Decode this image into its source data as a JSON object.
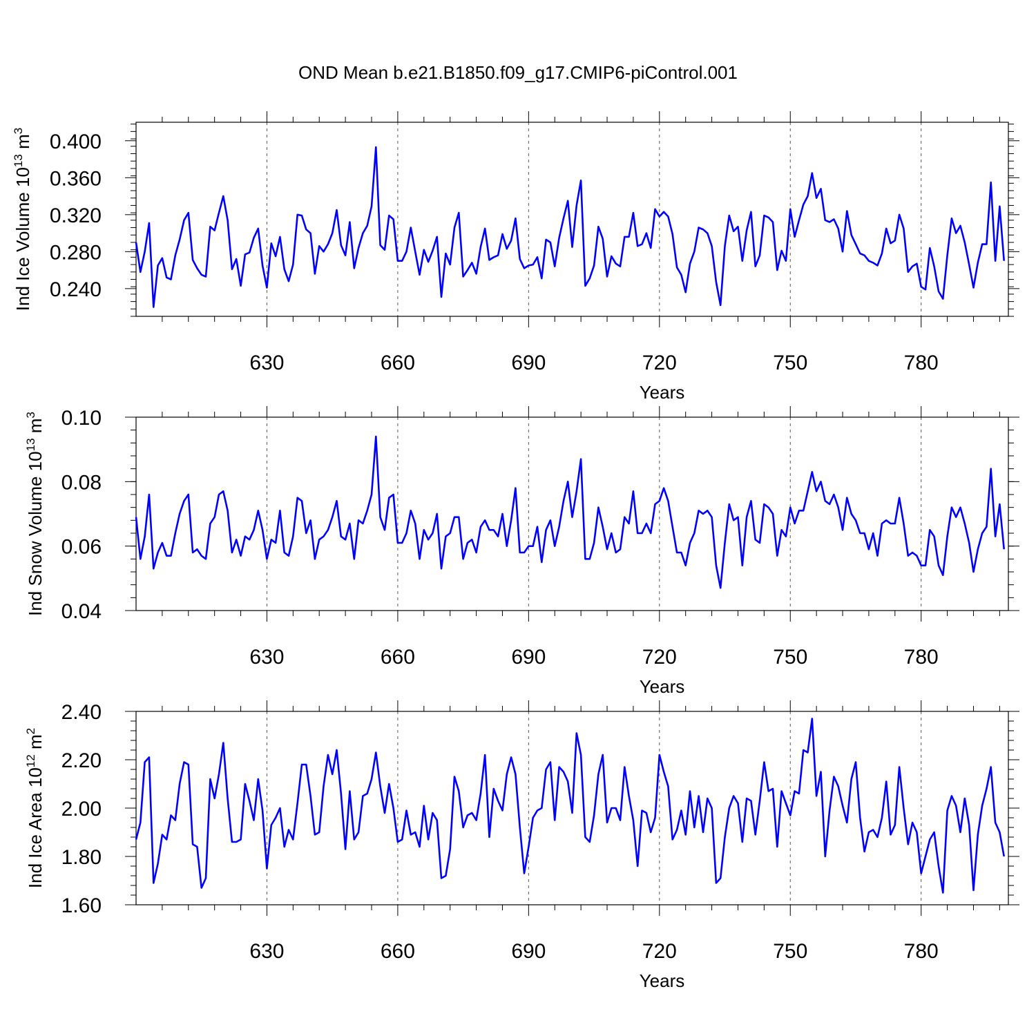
{
  "title": "OND Mean b.e21.B1850.f09_g17.CMIP6-piControl.001",
  "colors": {
    "series": "#0000ff",
    "axis": "#000000",
    "grid": "#555555"
  },
  "chart_data": [
    {
      "type": "line",
      "name": "ice-volume",
      "ylabel_main": "Ind Ice Volume 10",
      "ylabel_sup": "13",
      "ylabel_unit": " m",
      "ylabel_unit_sup": "3",
      "xlabel": "Years",
      "xlim": [
        600,
        800
      ],
      "ylim": [
        0.21,
        0.42
      ],
      "x_ticks": [
        630,
        660,
        690,
        720,
        750,
        780
      ],
      "x_tick_labels": [
        "630",
        "660",
        "690",
        "720",
        "750",
        "780"
      ],
      "y_ticks": [
        0.24,
        0.28,
        0.32,
        0.36,
        0.4
      ],
      "y_tick_labels": [
        "0.240",
        "0.280",
        "0.320",
        "0.360",
        "0.400"
      ],
      "x_start": 600,
      "values": [
        0.29,
        0.258,
        0.28,
        0.311,
        0.22,
        0.265,
        0.273,
        0.252,
        0.25,
        0.276,
        0.293,
        0.314,
        0.322,
        0.271,
        0.262,
        0.255,
        0.253,
        0.307,
        0.303,
        0.322,
        0.34,
        0.314,
        0.261,
        0.272,
        0.243,
        0.277,
        0.279,
        0.295,
        0.305,
        0.265,
        0.241,
        0.289,
        0.275,
        0.296,
        0.261,
        0.248,
        0.266,
        0.32,
        0.319,
        0.304,
        0.3,
        0.256,
        0.286,
        0.28,
        0.288,
        0.3,
        0.325,
        0.287,
        0.276,
        0.312,
        0.262,
        0.284,
        0.3,
        0.308,
        0.329,
        0.393,
        0.287,
        0.282,
        0.319,
        0.315,
        0.27,
        0.27,
        0.28,
        0.306,
        0.28,
        0.255,
        0.282,
        0.269,
        0.281,
        0.296,
        0.231,
        0.278,
        0.266,
        0.306,
        0.322,
        0.253,
        0.26,
        0.268,
        0.256,
        0.285,
        0.305,
        0.271,
        0.274,
        0.276,
        0.299,
        0.283,
        0.292,
        0.316,
        0.272,
        0.262,
        0.265,
        0.266,
        0.274,
        0.251,
        0.293,
        0.29,
        0.264,
        0.295,
        0.316,
        0.335,
        0.285,
        0.33,
        0.357,
        0.243,
        0.251,
        0.265,
        0.307,
        0.294,
        0.253,
        0.275,
        0.267,
        0.264,
        0.296,
        0.296,
        0.322,
        0.286,
        0.288,
        0.3,
        0.284,
        0.326,
        0.318,
        0.323,
        0.318,
        0.299,
        0.263,
        0.255,
        0.236,
        0.267,
        0.28,
        0.306,
        0.304,
        0.3,
        0.286,
        0.247,
        0.222,
        0.286,
        0.319,
        0.302,
        0.307,
        0.27,
        0.303,
        0.323,
        0.264,
        0.276,
        0.319,
        0.317,
        0.312,
        0.26,
        0.281,
        0.27,
        0.326,
        0.296,
        0.314,
        0.331,
        0.34,
        0.365,
        0.338,
        0.348,
        0.314,
        0.312,
        0.315,
        0.305,
        0.28,
        0.324,
        0.298,
        0.288,
        0.278,
        0.276,
        0.27,
        0.268,
        0.265,
        0.278,
        0.305,
        0.289,
        0.292,
        0.32,
        0.305,
        0.258,
        0.264,
        0.267,
        0.242,
        0.239,
        0.284,
        0.264,
        0.237,
        0.229,
        0.276,
        0.316,
        0.3,
        0.308,
        0.29,
        0.266,
        0.241,
        0.268,
        0.288,
        0.288,
        0.355,
        0.27,
        0.329,
        0.27
      ]
    },
    {
      "type": "line",
      "name": "snow-volume",
      "ylabel_main": "Ind Snow Volume 10",
      "ylabel_sup": "13",
      "ylabel_unit": " m",
      "ylabel_unit_sup": "3",
      "xlabel": "Years",
      "xlim": [
        600,
        800
      ],
      "ylim": [
        0.04,
        0.1
      ],
      "x_ticks": [
        630,
        660,
        690,
        720,
        750,
        780
      ],
      "x_tick_labels": [
        "630",
        "660",
        "690",
        "720",
        "750",
        "780"
      ],
      "y_ticks": [
        0.04,
        0.06,
        0.08,
        0.1
      ],
      "y_tick_labels": [
        "0.04",
        "0.06",
        "0.08",
        "0.10"
      ],
      "x_start": 600,
      "values": [
        0.069,
        0.056,
        0.063,
        0.076,
        0.053,
        0.058,
        0.061,
        0.057,
        0.057,
        0.064,
        0.07,
        0.074,
        0.076,
        0.058,
        0.059,
        0.057,
        0.056,
        0.067,
        0.069,
        0.076,
        0.077,
        0.071,
        0.058,
        0.062,
        0.057,
        0.063,
        0.062,
        0.065,
        0.071,
        0.065,
        0.056,
        0.062,
        0.061,
        0.071,
        0.058,
        0.057,
        0.063,
        0.075,
        0.074,
        0.064,
        0.068,
        0.056,
        0.062,
        0.063,
        0.065,
        0.069,
        0.074,
        0.063,
        0.062,
        0.067,
        0.056,
        0.068,
        0.067,
        0.071,
        0.076,
        0.094,
        0.069,
        0.065,
        0.075,
        0.076,
        0.061,
        0.061,
        0.064,
        0.071,
        0.067,
        0.056,
        0.065,
        0.062,
        0.064,
        0.07,
        0.053,
        0.063,
        0.064,
        0.069,
        0.069,
        0.056,
        0.061,
        0.062,
        0.058,
        0.066,
        0.068,
        0.065,
        0.065,
        0.063,
        0.07,
        0.06,
        0.068,
        0.078,
        0.058,
        0.058,
        0.06,
        0.06,
        0.066,
        0.055,
        0.065,
        0.068,
        0.06,
        0.066,
        0.074,
        0.08,
        0.069,
        0.077,
        0.087,
        0.056,
        0.056,
        0.061,
        0.072,
        0.066,
        0.059,
        0.064,
        0.058,
        0.059,
        0.069,
        0.067,
        0.077,
        0.064,
        0.064,
        0.067,
        0.064,
        0.073,
        0.074,
        0.078,
        0.074,
        0.066,
        0.058,
        0.058,
        0.054,
        0.061,
        0.064,
        0.071,
        0.07,
        0.071,
        0.069,
        0.054,
        0.047,
        0.061,
        0.073,
        0.068,
        0.069,
        0.054,
        0.069,
        0.074,
        0.062,
        0.061,
        0.073,
        0.072,
        0.07,
        0.057,
        0.065,
        0.063,
        0.072,
        0.067,
        0.071,
        0.071,
        0.077,
        0.083,
        0.077,
        0.08,
        0.074,
        0.073,
        0.076,
        0.072,
        0.065,
        0.075,
        0.07,
        0.068,
        0.064,
        0.064,
        0.059,
        0.064,
        0.057,
        0.067,
        0.068,
        0.067,
        0.067,
        0.075,
        0.067,
        0.057,
        0.058,
        0.057,
        0.054,
        0.054,
        0.065,
        0.063,
        0.054,
        0.051,
        0.063,
        0.072,
        0.069,
        0.072,
        0.067,
        0.061,
        0.052,
        0.059,
        0.064,
        0.066,
        0.084,
        0.063,
        0.073,
        0.059
      ]
    },
    {
      "type": "line",
      "name": "ice-area",
      "ylabel_main": "Ind Ice Area 10",
      "ylabel_sup": "12",
      "ylabel_unit": " m",
      "ylabel_unit_sup": "2",
      "xlabel": "Years",
      "xlim": [
        600,
        800
      ],
      "ylim": [
        1.6,
        2.4
      ],
      "x_ticks": [
        630,
        660,
        690,
        720,
        750,
        780
      ],
      "x_tick_labels": [
        "630",
        "660",
        "690",
        "720",
        "750",
        "780"
      ],
      "y_ticks": [
        1.6,
        1.8,
        2.0,
        2.2,
        2.4
      ],
      "y_tick_labels": [
        "1.60",
        "1.80",
        "2.00",
        "2.20",
        "2.40"
      ],
      "x_start": 600,
      "values": [
        1.87,
        1.94,
        2.19,
        2.21,
        1.69,
        1.77,
        1.89,
        1.87,
        1.97,
        1.95,
        2.1,
        2.19,
        2.18,
        1.85,
        1.84,
        1.67,
        1.71,
        2.12,
        2.04,
        2.14,
        2.27,
        2.04,
        1.86,
        1.86,
        1.87,
        2.1,
        2.03,
        1.95,
        2.12,
        1.99,
        1.75,
        1.93,
        1.96,
        2.0,
        1.84,
        1.91,
        1.87,
        2.02,
        2.18,
        2.18,
        2.05,
        1.89,
        1.9,
        2.09,
        2.22,
        2.14,
        2.24,
        2.06,
        1.83,
        2.07,
        1.87,
        1.9,
        2.05,
        2.06,
        2.12,
        2.23,
        2.09,
        1.98,
        2.1,
        2.0,
        1.86,
        1.87,
        1.99,
        1.89,
        1.9,
        1.84,
        2.01,
        1.87,
        1.98,
        1.95,
        1.71,
        1.72,
        1.83,
        2.13,
        2.07,
        1.92,
        1.97,
        1.98,
        1.95,
        2.06,
        2.22,
        1.88,
        2.08,
        2.03,
        1.99,
        2.14,
        2.21,
        2.14,
        1.92,
        1.73,
        1.84,
        1.96,
        1.99,
        2.0,
        2.16,
        2.19,
        1.95,
        2.17,
        2.15,
        2.11,
        1.98,
        2.31,
        2.22,
        1.88,
        1.86,
        1.97,
        2.14,
        2.22,
        1.94,
        2.0,
        2.0,
        1.95,
        2.17,
        2.05,
        1.95,
        1.76,
        1.99,
        1.98,
        1.9,
        1.96,
        2.22,
        2.15,
        2.09,
        1.87,
        1.91,
        1.99,
        1.89,
        2.07,
        1.92,
        2.05,
        1.9,
        2.04,
        2.0,
        1.69,
        1.71,
        1.88,
        2.0,
        2.05,
        2.02,
        1.86,
        2.04,
        2.03,
        1.89,
        2.03,
        2.19,
        2.07,
        2.08,
        1.84,
        2.07,
        2.02,
        1.97,
        2.07,
        2.06,
        2.24,
        2.23,
        2.37,
        2.05,
        2.15,
        1.8,
        1.99,
        2.13,
        2.09,
        2.01,
        1.94,
        2.12,
        2.19,
        1.96,
        1.82,
        1.9,
        1.91,
        1.88,
        1.96,
        2.11,
        1.89,
        1.93,
        2.17,
        2.0,
        1.85,
        1.94,
        1.9,
        1.73,
        1.8,
        1.87,
        1.9,
        1.76,
        1.65,
        1.99,
        2.05,
        2.01,
        1.9,
        2.04,
        1.93,
        1.66,
        1.89,
        2.01,
        2.08,
        2.17,
        1.94,
        1.9,
        1.8
      ]
    }
  ]
}
